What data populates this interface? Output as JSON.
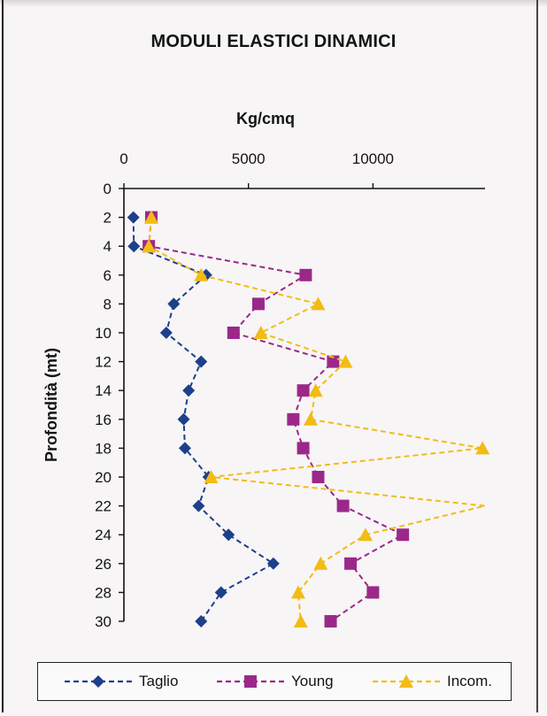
{
  "chart_data": {
    "type": "line",
    "title": "MODULI ELASTICI DINAMICI",
    "xlabel": "Kg/cmq",
    "ylabel": "Profondità (mt)",
    "x_ticks": [
      0,
      5000,
      10000
    ],
    "y_ticks": [
      0,
      2,
      4,
      6,
      8,
      10,
      12,
      14,
      16,
      18,
      20,
      22,
      24,
      26,
      28,
      30
    ],
    "xlim": [
      0,
      14500
    ],
    "ylim": [
      30,
      0
    ],
    "y_inverted": true,
    "legend_position": "bottom",
    "series": [
      {
        "name": "Taglio",
        "color": "#1e3f8a",
        "marker": "diamond",
        "depth": [
          2,
          4,
          6,
          8,
          10,
          12,
          14,
          16,
          18,
          20,
          22,
          24,
          26,
          28,
          30
        ],
        "values": [
          380,
          400,
          3300,
          2000,
          1700,
          3100,
          2600,
          2400,
          2450,
          3400,
          3000,
          4200,
          6000,
          3900,
          3100
        ]
      },
      {
        "name": "Young",
        "color": "#9b2889",
        "marker": "square",
        "depth": [
          2,
          4,
          6,
          8,
          10,
          12,
          14,
          16,
          18,
          20,
          22,
          24,
          26,
          28,
          30
        ],
        "values": [
          1100,
          1000,
          7300,
          5400,
          4400,
          8400,
          7200,
          6800,
          7200,
          7800,
          8800,
          11200,
          9100,
          10000,
          8300
        ]
      },
      {
        "name": "Incom.",
        "color": "#f2bc15",
        "marker": "triangle",
        "depth": [
          2,
          4,
          6,
          8,
          10,
          12,
          14,
          16,
          18,
          20,
          22,
          24,
          26,
          28,
          30
        ],
        "values": [
          1100,
          1000,
          3100,
          7800,
          5500,
          8900,
          7700,
          7500,
          14400,
          3500,
          14500,
          9700,
          7900,
          7000,
          7100
        ],
        "clipped_beyond_axis": [
          false,
          false,
          false,
          false,
          false,
          false,
          false,
          false,
          false,
          false,
          true,
          false,
          false,
          false,
          false
        ]
      }
    ]
  }
}
